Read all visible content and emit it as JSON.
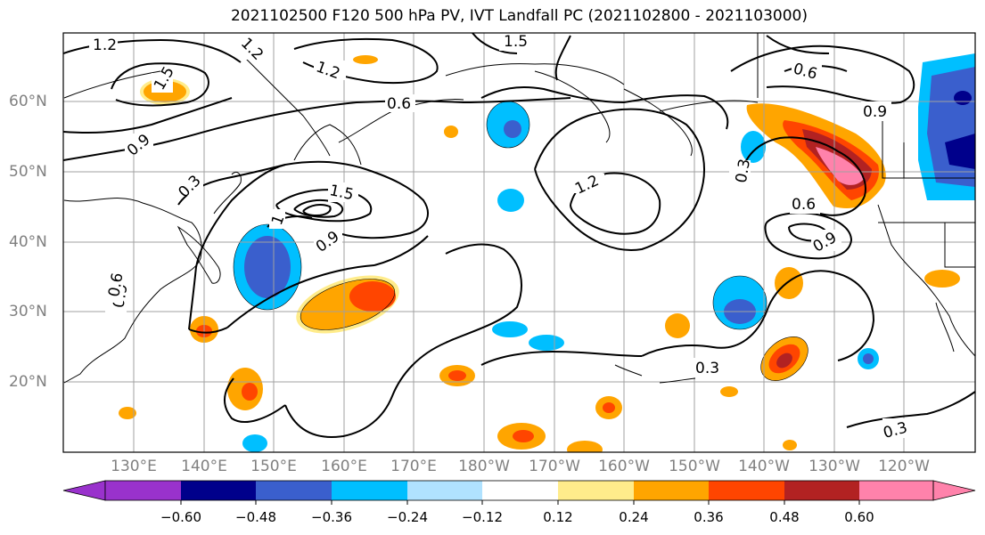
{
  "title": "2021102500 F120 500 hPa PV, IVT Landfall PC (2021102800 - 2021103000)",
  "lat_labels": [
    "60°N",
    "50°N",
    "40°N",
    "30°N",
    "20°N"
  ],
  "lon_labels": [
    "130°E",
    "140°E",
    "150°E",
    "160°E",
    "170°E",
    "180°W",
    "170°W",
    "160°W",
    "150°W",
    "140°W",
    "130°W",
    "120°W"
  ],
  "colorbar": {
    "tick_labels": [
      "−0.60",
      "−0.48",
      "−0.36",
      "−0.24",
      "−0.12",
      "0.12",
      "0.24",
      "0.36",
      "0.48",
      "0.60"
    ],
    "colors": [
      "#9932cc",
      "#00008b",
      "#3a5fcd",
      "#00bfff",
      "#b0e2ff",
      "#ffffff",
      "#ffec8b",
      "#ffa500",
      "#ff4500",
      "#b22222",
      "#ff82ab"
    ]
  },
  "contour_labels": [
    "1.2",
    "1.2",
    "1.2",
    "1.5",
    "1.5",
    "0.6",
    "0.9",
    "0.3",
    "1.5",
    "0.9",
    "1",
    "0.9",
    "0.6",
    "1.2",
    "0.6",
    "0.9",
    "0.3",
    "0.6",
    "0.9",
    "0.3",
    "0.3"
  ]
}
